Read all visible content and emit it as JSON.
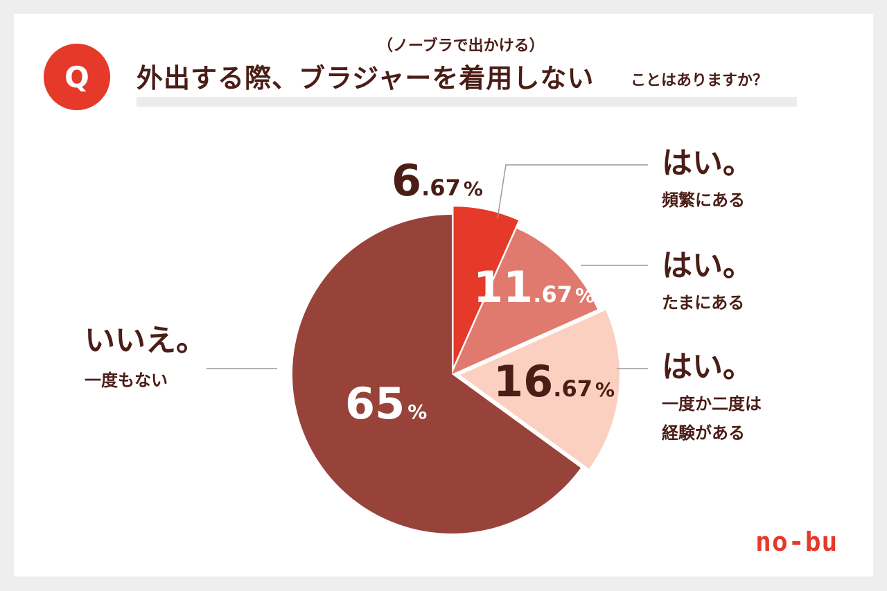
{
  "header": {
    "badge": "Q",
    "sub": "（ノーブラで出かける）",
    "main": "外出する際、ブラジャーを着用しない",
    "tail": "ことはありますか？"
  },
  "chart_data": {
    "type": "pie",
    "slices": [
      {
        "value": 6.67,
        "int": "6",
        "dec": ".67",
        "sym": "%",
        "main": "はい。",
        "sub1": "頻繁にある",
        "sub2": "",
        "color": "#e5392a",
        "text_color": "#4a1d16"
      },
      {
        "value": 11.67,
        "int": "11",
        "dec": ".67",
        "sym": "%",
        "main": "はい。",
        "sub1": "たまにある",
        "sub2": "",
        "color": "#e07a6f",
        "text_color": "#ffffff"
      },
      {
        "value": 16.67,
        "int": "16",
        "dec": ".67",
        "sym": "%",
        "main": "はい。",
        "sub1": "一度か二度は",
        "sub2": "経験がある",
        "color": "#fcd0c0",
        "text_color": "#4a1d16"
      },
      {
        "value": 65,
        "int": "65",
        "dec": "",
        "sym": "%",
        "main": "いいえ。",
        "sub1": "一度もない",
        "sub2": "",
        "color": "#98433a",
        "text_color": "#ffffff"
      }
    ]
  },
  "logo": "no-bu"
}
